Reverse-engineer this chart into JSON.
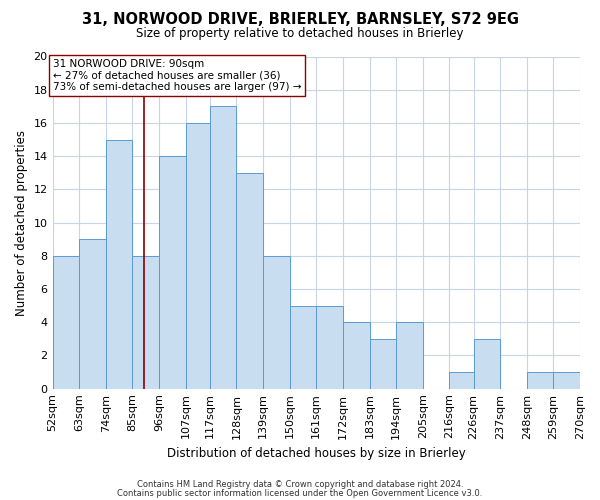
{
  "title": "31, NORWOOD DRIVE, BRIERLEY, BARNSLEY, S72 9EG",
  "subtitle": "Size of property relative to detached houses in Brierley",
  "xlabel": "Distribution of detached houses by size in Brierley",
  "ylabel": "Number of detached properties",
  "footer_line1": "Contains HM Land Registry data © Crown copyright and database right 2024.",
  "footer_line2": "Contains public sector information licensed under the Open Government Licence v3.0.",
  "bin_edges": [
    52,
    63,
    74,
    85,
    96,
    107,
    117,
    128,
    139,
    150,
    161,
    172,
    183,
    194,
    205,
    216,
    226,
    237,
    248,
    259,
    270
  ],
  "counts": [
    8,
    9,
    15,
    8,
    14,
    16,
    17,
    13,
    8,
    5,
    5,
    4,
    3,
    4,
    0,
    1,
    3,
    0,
    1,
    1
  ],
  "bar_facecolor": "#c9ddf0",
  "bar_edgecolor": "#5b9bd5",
  "property_size": 90,
  "vline_color": "#8b0000",
  "annotation_text": "31 NORWOOD DRIVE: 90sqm\n← 27% of detached houses are smaller (36)\n73% of semi-detached houses are larger (97) →",
  "annotation_box_edgecolor": "#8b0000",
  "ylim": [
    0,
    20
  ],
  "yticks": [
    0,
    2,
    4,
    6,
    8,
    10,
    12,
    14,
    16,
    18,
    20
  ],
  "background_color": "#ffffff",
  "grid_color": "#c8d4e8"
}
